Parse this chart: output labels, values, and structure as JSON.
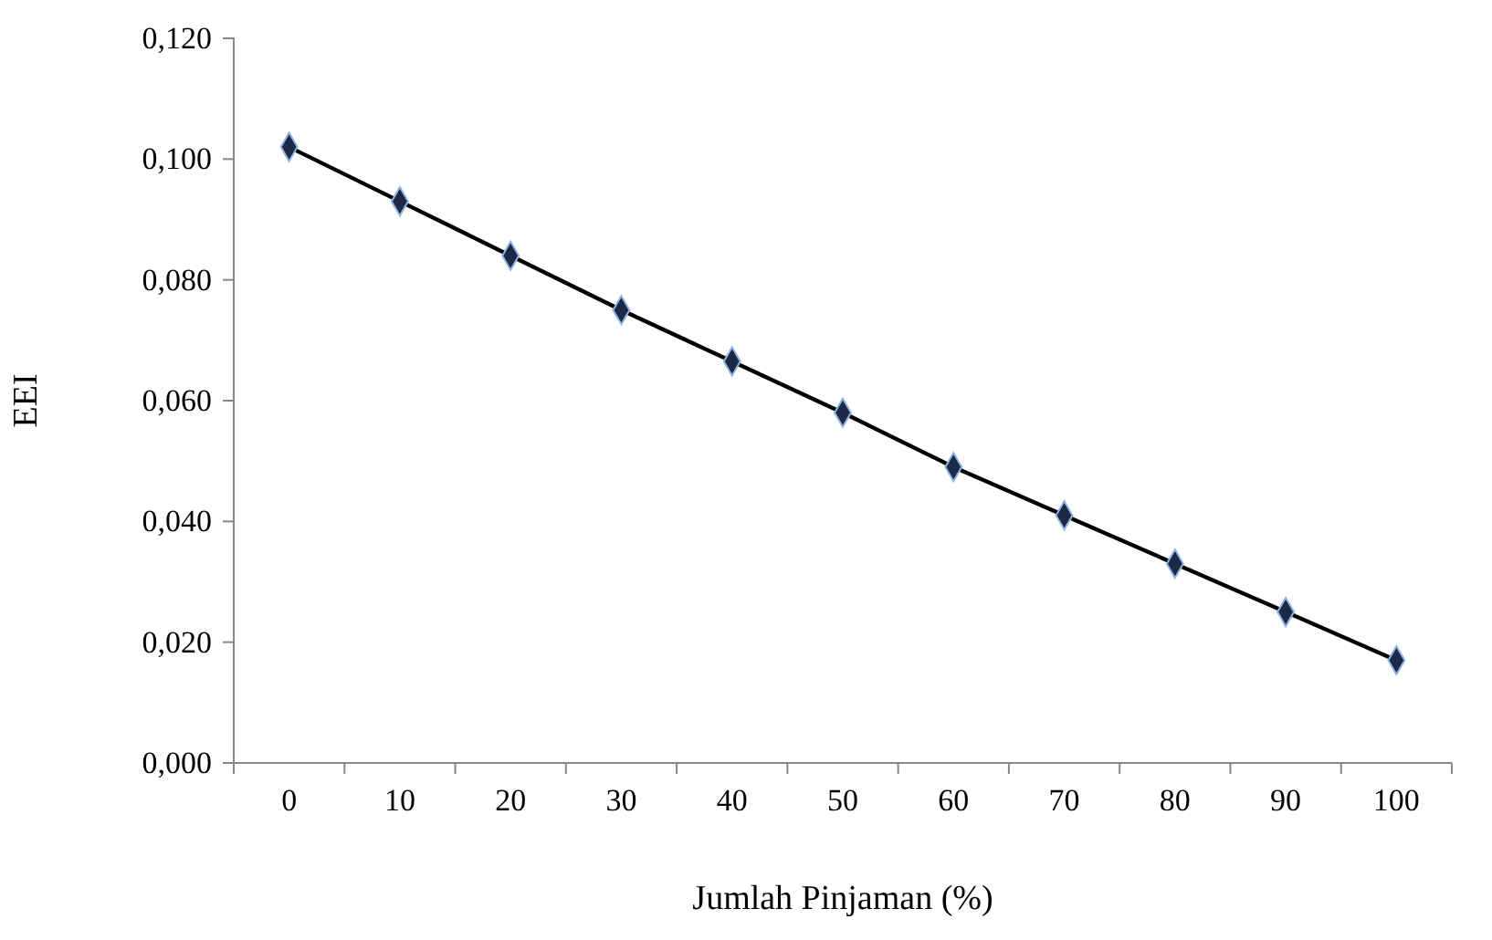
{
  "chart_data": {
    "type": "line",
    "xlabel": "Jumlah Pinjaman (%)",
    "ylabel": "EEI",
    "categories": [
      "0",
      "10",
      "20",
      "30",
      "40",
      "50",
      "60",
      "70",
      "80",
      "90",
      "100"
    ],
    "series": [
      {
        "color": "#000000",
        "values": [
          0.102,
          0.093,
          0.084,
          0.075,
          0.0665,
          0.058,
          0.049,
          0.041,
          0.033,
          0.025,
          0.017
        ]
      }
    ],
    "ylim": [
      0,
      0.12
    ],
    "yticks": [
      {
        "value": 0,
        "label": "0,000"
      },
      {
        "value": 0.02,
        "label": "0,020"
      },
      {
        "value": 0.04,
        "label": "0,040"
      },
      {
        "value": 0.06,
        "label": "0,060"
      },
      {
        "value": 0.08,
        "label": "0,080"
      },
      {
        "value": 0.1,
        "label": "0,100"
      },
      {
        "value": 0.12,
        "label": "0,120"
      }
    ],
    "marker": "diamond",
    "line_style": "solid"
  }
}
